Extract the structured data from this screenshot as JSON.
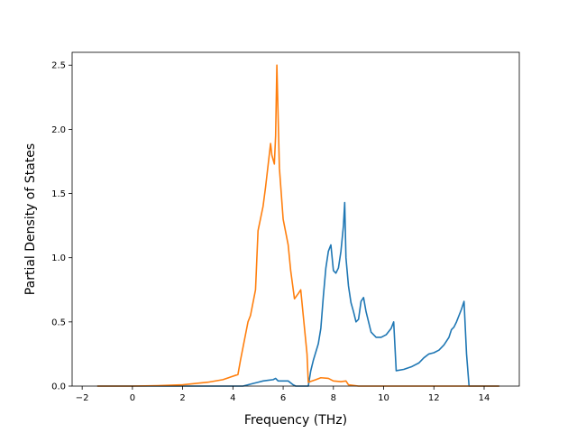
{
  "chart_data": {
    "type": "line",
    "title": "",
    "xlabel": "Frequency (THz)",
    "ylabel": "Partial Density of States",
    "xlim": [
      -2.4,
      15.4
    ],
    "ylim": [
      0,
      2.6
    ],
    "xticks": [
      -2,
      0,
      2,
      4,
      6,
      8,
      10,
      12,
      14
    ],
    "xtick_labels": [
      "−2",
      "0",
      "2",
      "4",
      "6",
      "8",
      "10",
      "12",
      "14"
    ],
    "yticks": [
      0.0,
      0.5,
      1.0,
      1.5,
      2.0,
      2.5
    ],
    "ytick_labels": [
      "0.0",
      "0.5",
      "1.0",
      "1.5",
      "2.0",
      "2.5"
    ],
    "grid": false,
    "series": [
      {
        "color": "#1f77b4",
        "x": [
          -1.4,
          4.4,
          4.8,
          5.0,
          5.2,
          5.4,
          5.6,
          5.7,
          5.8,
          6.0,
          6.2,
          6.4,
          6.5,
          7.0,
          7.1,
          7.2,
          7.4,
          7.5,
          7.6,
          7.7,
          7.8,
          7.9,
          8.0,
          8.1,
          8.2,
          8.3,
          8.4,
          8.45,
          8.5,
          8.6,
          8.7,
          8.8,
          8.9,
          9.0,
          9.1,
          9.2,
          9.3,
          9.4,
          9.5,
          9.7,
          9.9,
          10.1,
          10.3,
          10.4,
          10.5,
          10.8,
          11.1,
          11.4,
          11.6,
          11.8,
          12.0,
          12.2,
          12.4,
          12.6,
          12.7,
          12.8,
          12.9,
          13.0,
          13.1,
          13.2,
          13.3,
          13.4,
          14.6
        ],
        "y": [
          0.0,
          0.0,
          0.02,
          0.03,
          0.04,
          0.045,
          0.05,
          0.06,
          0.04,
          0.04,
          0.04,
          0.01,
          0.0,
          0.0,
          0.12,
          0.2,
          0.33,
          0.45,
          0.7,
          0.92,
          1.05,
          1.1,
          0.9,
          0.88,
          0.92,
          1.05,
          1.25,
          1.43,
          1.0,
          0.78,
          0.65,
          0.58,
          0.5,
          0.52,
          0.66,
          0.69,
          0.58,
          0.5,
          0.42,
          0.38,
          0.38,
          0.4,
          0.45,
          0.5,
          0.12,
          0.13,
          0.15,
          0.18,
          0.22,
          0.25,
          0.26,
          0.28,
          0.32,
          0.38,
          0.44,
          0.46,
          0.5,
          0.55,
          0.6,
          0.66,
          0.25,
          0.0,
          0.0
        ]
      },
      {
        "color": "#ff7f0e",
        "x": [
          -1.4,
          0.0,
          1.0,
          2.0,
          3.0,
          3.6,
          3.9,
          4.2,
          4.3,
          4.6,
          4.7,
          4.9,
          5.0,
          5.2,
          5.3,
          5.5,
          5.55,
          5.65,
          5.7,
          5.75,
          5.85,
          6.0,
          6.2,
          6.3,
          6.45,
          6.6,
          6.7,
          6.85,
          6.95,
          7.0,
          7.3,
          7.5,
          7.8,
          8.0,
          8.3,
          8.5,
          8.6,
          9.0,
          14.6
        ],
        "y": [
          0.0,
          0.0,
          0.003,
          0.01,
          0.03,
          0.05,
          0.07,
          0.09,
          0.2,
          0.5,
          0.55,
          0.75,
          1.21,
          1.4,
          1.55,
          1.89,
          1.8,
          1.73,
          1.95,
          2.5,
          1.7,
          1.3,
          1.1,
          0.9,
          0.68,
          0.72,
          0.75,
          0.45,
          0.25,
          0.03,
          0.05,
          0.065,
          0.06,
          0.04,
          0.035,
          0.04,
          0.01,
          0.0,
          0.0
        ]
      }
    ]
  }
}
